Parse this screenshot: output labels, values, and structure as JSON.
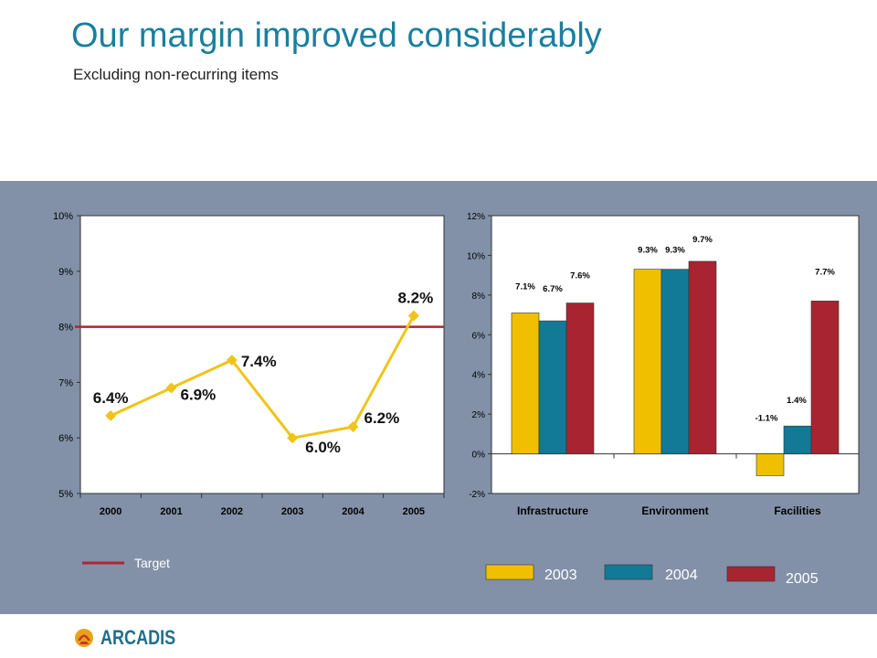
{
  "slide": {
    "title": "Our margin improved considerably",
    "subtitle": "Excluding non-recurring items"
  },
  "logo": {
    "text": "ARCADIS"
  },
  "chart_data": [
    {
      "type": "line",
      "x": [
        "2000",
        "2001",
        "2002",
        "2003",
        "2004",
        "2005"
      ],
      "series": [
        {
          "values": [
            6.4,
            6.9,
            7.4,
            6.0,
            6.2,
            8.2
          ],
          "color": "#f0c419"
        }
      ],
      "data_labels": [
        "6.4%",
        "6.9%",
        "7.4%",
        "6.0%",
        "6.2%",
        "8.2%"
      ],
      "reference_line": {
        "name": "Target",
        "value": 8.0,
        "color": "#b0262e"
      },
      "ylim": [
        5,
        10
      ],
      "yticks": [
        "5%",
        "6%",
        "7%",
        "8%",
        "9%",
        "10%"
      ],
      "grid": false,
      "legend": [
        {
          "label": "Target",
          "color": "#b0262e"
        }
      ],
      "legend_position": "bottom-left"
    },
    {
      "type": "bar",
      "categories": [
        "Infrastructure",
        "Environment",
        "Facilities"
      ],
      "series": [
        {
          "name": "2003",
          "values": [
            7.1,
            9.3,
            -1.1
          ],
          "color": "#f0c000"
        },
        {
          "name": "2004",
          "values": [
            6.7,
            9.3,
            1.4
          ],
          "color": "#127a96"
        },
        {
          "name": "2005",
          "values": [
            7.6,
            9.7,
            7.7
          ],
          "color": "#a82430"
        }
      ],
      "data_labels": [
        [
          "7.1%",
          "9.3%",
          "-1.1%"
        ],
        [
          "6.7%",
          "9.3%",
          "1.4%"
        ],
        [
          "7.6%",
          "9.7%",
          "7.7%"
        ]
      ],
      "ylim": [
        -2,
        12
      ],
      "yticks": [
        "-2%",
        "0%",
        "2%",
        "4%",
        "6%",
        "8%",
        "10%",
        "12%"
      ],
      "grid": false,
      "legend_position": "bottom"
    }
  ]
}
